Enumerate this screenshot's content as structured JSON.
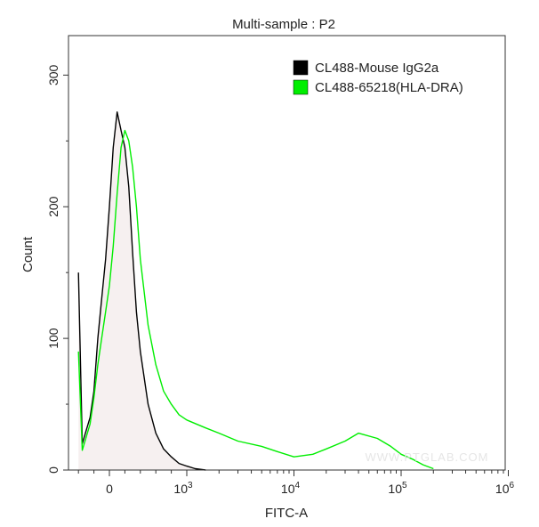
{
  "chart_data": {
    "type": "area",
    "title": "Multi-sample : P2",
    "xlabel": "FITC-A",
    "ylabel": "Count",
    "ylim": [
      0,
      330
    ],
    "y_ticks": [
      0,
      100,
      200,
      300
    ],
    "x_scale": "biexponential",
    "x_ticks": [
      {
        "value": 0,
        "base": "0",
        "exp": ""
      },
      {
        "value": 1000,
        "base": "10",
        "exp": "3"
      },
      {
        "value": 10000,
        "base": "10",
        "exp": "4"
      },
      {
        "value": 100000,
        "base": "10",
        "exp": "5"
      },
      {
        "value": 1000000,
        "base": "10",
        "exp": "6"
      }
    ],
    "legend_position": "top-right",
    "watermark": "WWW.PTGLAB.COM",
    "series": [
      {
        "name": "CL488-Mouse IgG2a",
        "color": "#000000",
        "x": [
          -400,
          -350,
          -300,
          -250,
          -200,
          -150,
          -100,
          -50,
          0,
          50,
          100,
          150,
          200,
          250,
          300,
          350,
          400,
          500,
          600,
          700,
          800,
          900,
          1000,
          1200,
          1500
        ],
        "y": [
          150,
          20,
          30,
          40,
          60,
          100,
          130,
          160,
          200,
          245,
          272,
          258,
          245,
          215,
          165,
          120,
          90,
          50,
          28,
          16,
          10,
          5,
          3,
          1,
          0
        ]
      },
      {
        "name": "CL488-65218(HLA-DRA)",
        "color": "#00ee00",
        "x": [
          -400,
          -350,
          -300,
          -250,
          -200,
          -150,
          -100,
          -50,
          0,
          50,
          100,
          150,
          200,
          250,
          300,
          350,
          400,
          500,
          600,
          700,
          800,
          900,
          1000,
          1500,
          2000,
          3000,
          5000,
          7000,
          10000,
          15000,
          20000,
          30000,
          40000,
          60000,
          80000,
          100000,
          130000,
          160000,
          200000
        ],
        "y": [
          90,
          15,
          25,
          35,
          55,
          80,
          100,
          120,
          140,
          170,
          210,
          245,
          258,
          250,
          230,
          200,
          160,
          110,
          80,
          60,
          50,
          42,
          38,
          32,
          28,
          22,
          18,
          14,
          10,
          12,
          16,
          22,
          28,
          24,
          18,
          12,
          8,
          4,
          1
        ]
      }
    ]
  }
}
